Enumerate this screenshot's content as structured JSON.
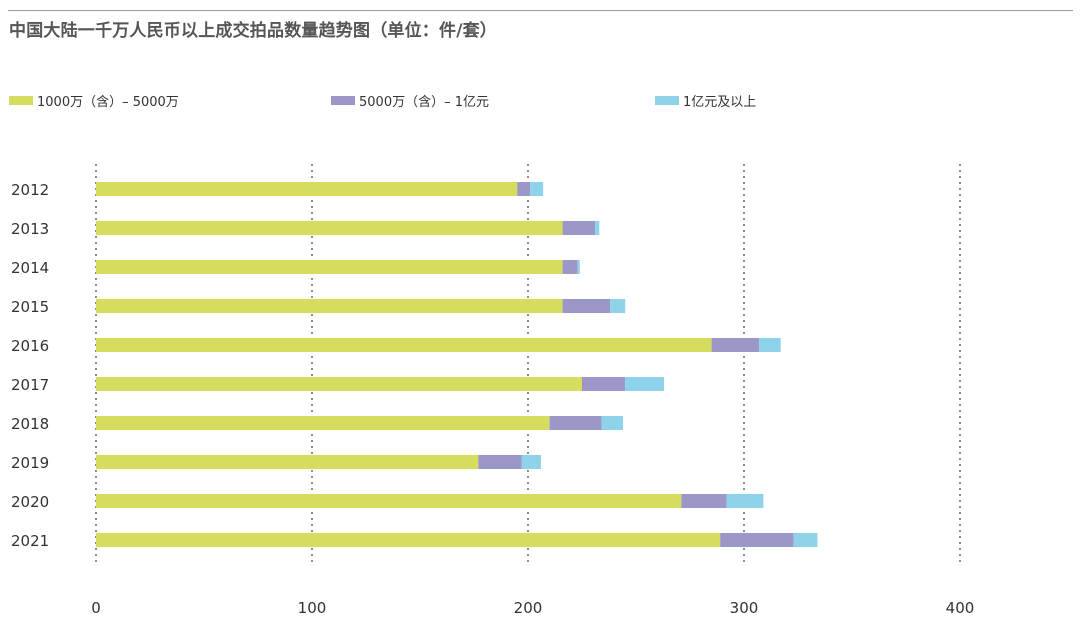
{
  "title": "中国大陆一千万人民币以上成交拍品数量趋势图（单位：件/套）",
  "colors": {
    "tier1": "#d5dc5e",
    "tier2": "#9b97c9",
    "tier3": "#8ed3ea",
    "grid": "#666666"
  },
  "chart_data": {
    "type": "bar",
    "orientation": "horizontal",
    "stacked": true,
    "title": "中国大陆一千万人民币以上成交拍品数量趋势图（单位：件/套）",
    "categories": [
      "2012",
      "2013",
      "2014",
      "2015",
      "2016",
      "2017",
      "2018",
      "2019",
      "2020",
      "2021"
    ],
    "series": [
      {
        "name": "1000万（含）– 5000万",
        "color": "#d5dc5e",
        "values": [
          195,
          216,
          216,
          216,
          285,
          225,
          210,
          177,
          271,
          289
        ]
      },
      {
        "name": "5000万（含）– 1亿元",
        "color": "#9b97c9",
        "values": [
          6,
          15,
          7,
          22,
          22,
          20,
          24,
          20,
          21,
          34
        ]
      },
      {
        "name": "1亿元及以上",
        "color": "#8ed3ea",
        "values": [
          6,
          2,
          1,
          7,
          10,
          18,
          10,
          9,
          17,
          11
        ]
      }
    ],
    "xlim": [
      0,
      400
    ],
    "xticks": [
      "0",
      "100",
      "200",
      "300",
      "400"
    ],
    "grid": "vertical dotted",
    "legend": "top"
  }
}
